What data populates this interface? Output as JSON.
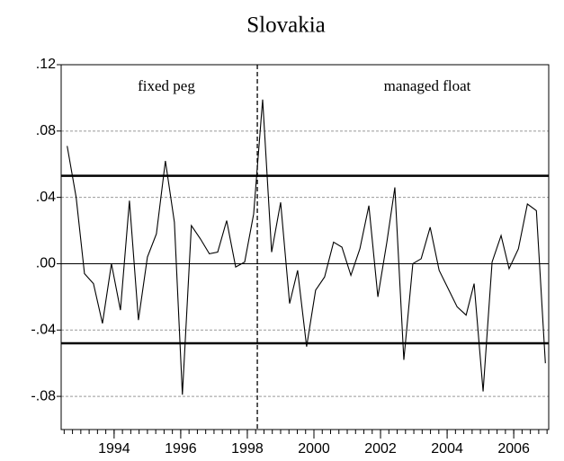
{
  "chart_data": {
    "type": "line",
    "title": "Slovakia",
    "annotations": [
      "fixed peg",
      "managed float"
    ],
    "x": [
      1992.59,
      1992.86,
      1993.11,
      1993.38,
      1993.65,
      1993.92,
      1994.19,
      1994.46,
      1994.73,
      1995.0,
      1995.27,
      1995.54,
      1995.81,
      1996.05,
      1996.32,
      1996.59,
      1996.86,
      1997.11,
      1997.38,
      1997.65,
      1997.92,
      1998.19,
      1998.46,
      1998.73,
      1999.0,
      1999.27,
      1999.51,
      1999.78,
      2000.05,
      2000.32,
      2000.59,
      2000.84,
      2001.11,
      2001.38,
      2001.65,
      2001.92,
      2002.19,
      2002.43,
      2002.7,
      2002.97,
      2003.22,
      2003.49,
      2003.76,
      2004.03,
      2004.3,
      2004.57,
      2004.81,
      2005.08,
      2005.35,
      2005.62,
      2005.86,
      2006.14,
      2006.41,
      2006.68,
      2006.95
    ],
    "series": [
      {
        "color": "#000000",
        "values": [
          0.071,
          0.04,
          -0.006,
          -0.012,
          -0.036,
          0.0,
          -0.028,
          0.038,
          -0.034,
          0.004,
          0.018,
          0.062,
          0.025,
          -0.079,
          0.023,
          0.015,
          0.006,
          0.007,
          0.026,
          -0.002,
          0.001,
          0.03,
          0.099,
          0.007,
          0.037,
          -0.024,
          -0.004,
          -0.05,
          -0.016,
          -0.008,
          0.013,
          0.01,
          -0.007,
          0.009,
          0.035,
          -0.02,
          0.013,
          0.046,
          -0.058,
          0.0,
          0.003,
          0.022,
          -0.004,
          -0.015,
          -0.026,
          -0.031,
          -0.012,
          -0.077,
          0.001,
          0.017,
          -0.003,
          0.009,
          0.036,
          0.032,
          -0.06
        ]
      }
    ],
    "hlines": [
      0.053,
      -0.048
    ],
    "vline": 1998.3,
    "xlim": [
      1992.41,
      2007.05
    ],
    "xticks": [
      1994,
      1996,
      1998,
      2000,
      2002,
      2004,
      2006
    ],
    "ylim": [
      -0.1,
      0.12
    ],
    "yticks": [
      {
        "value": 0.12,
        "label": ".12"
      },
      {
        "value": 0.08,
        "label": ".08"
      },
      {
        "value": 0.04,
        "label": ".04"
      },
      {
        "value": 0,
        "label": ".00"
      },
      {
        "value": -0.04,
        "label": "-.04"
      },
      {
        "value": -0.08,
        "label": "-.08"
      }
    ],
    "grid": true
  }
}
